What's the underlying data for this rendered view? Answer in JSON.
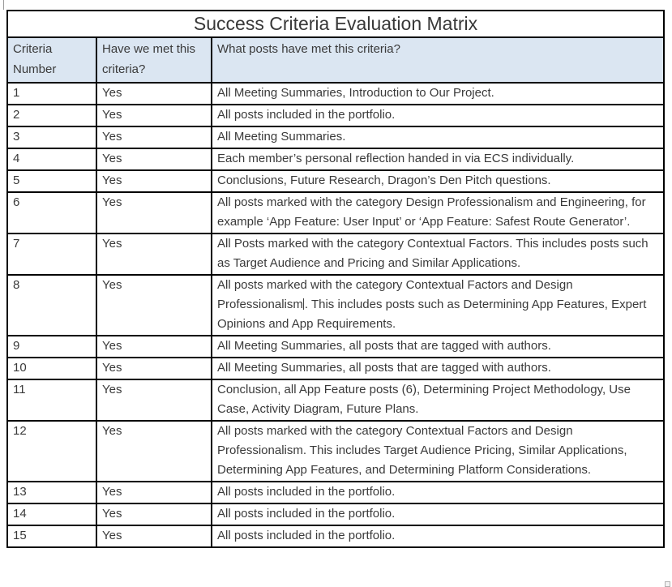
{
  "title": "Success Criteria Evaluation Matrix",
  "colors": {
    "header_bg": "#dbe6f2",
    "border": "#000000",
    "text": "#3a3a3a"
  },
  "table": {
    "headers": [
      "Criteria Number",
      "Have we met this criteria?",
      "What posts have met this criteria?"
    ],
    "rows": [
      {
        "number": "1",
        "met": "Yes",
        "posts": "All Meeting Summaries, Introduction to Our Project."
      },
      {
        "number": "2",
        "met": "Yes",
        "posts": "All posts included in the portfolio."
      },
      {
        "number": "3",
        "met": "Yes",
        "posts": "All Meeting Summaries."
      },
      {
        "number": "4",
        "met": "Yes",
        "posts": "Each member’s personal reflection handed in via ECS individually."
      },
      {
        "number": "5",
        "met": "Yes",
        "posts": "Conclusions, Future Research, Dragon’s Den Pitch questions."
      },
      {
        "number": "6",
        "met": "Yes",
        "posts": "All posts marked with the category Design Professionalism and Engineering, for example ‘App Feature: User Input’ or ‘App Feature: Safest Route Generator’."
      },
      {
        "number": "7",
        "met": "Yes",
        "posts": "All Posts marked with the category Contextual Factors. This includes posts such as Target Audience and Pricing and Similar Applications."
      },
      {
        "number": "8",
        "met": "Yes",
        "posts": "All posts marked with the category Contextual Factors and Design Professionalism. This includes posts such as Determining App Features, Expert Opinions and App Requirements.",
        "caret_after": "Professionalism"
      },
      {
        "number": "9",
        "met": "Yes",
        "posts": "All Meeting Summaries, all posts that are tagged with authors."
      },
      {
        "number": "10",
        "met": "Yes",
        "posts": "All Meeting Summaries, all posts that are tagged with authors."
      },
      {
        "number": "11",
        "met": "Yes",
        "posts": "Conclusion, all App Feature posts (6), Determining Project Methodology, Use Case, Activity Diagram, Future Plans."
      },
      {
        "number": "12",
        "met": "Yes",
        "posts": "All posts marked with the category Contextual Factors and Design Professionalism. This includes Target Audience Pricing, Similar Applications, Determining App Features, and Determining Platform Considerations."
      },
      {
        "number": "13",
        "met": "Yes",
        "posts": "All posts included in the portfolio."
      },
      {
        "number": "14",
        "met": "Yes",
        "posts": "All posts included in the portfolio."
      },
      {
        "number": "15",
        "met": "Yes",
        "posts": "All posts included in the portfolio."
      }
    ]
  }
}
